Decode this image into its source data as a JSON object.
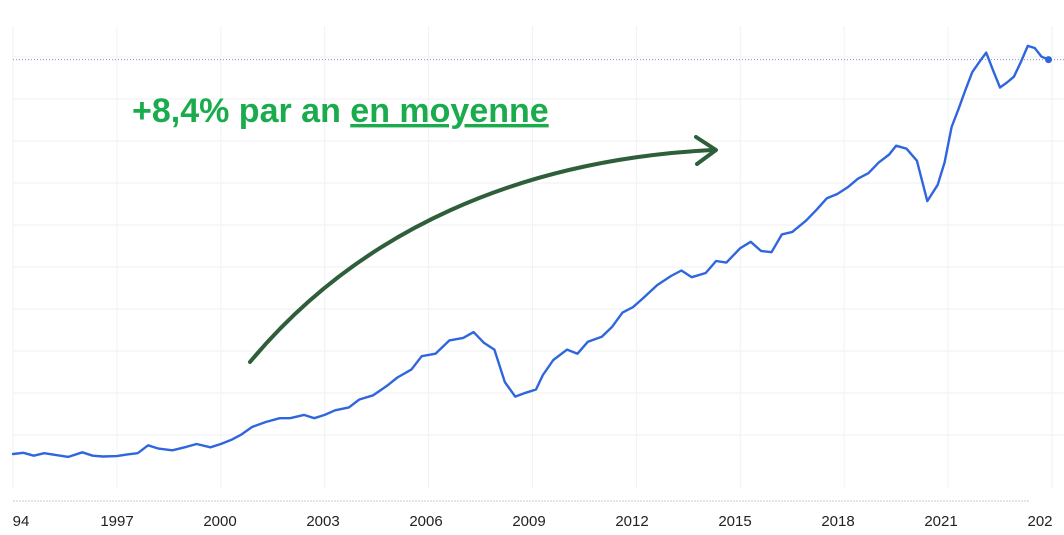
{
  "chart_data": {
    "type": "line",
    "title": "",
    "xlabel": "",
    "ylabel": "",
    "x_tick_labels": [
      "94",
      "1997",
      "2000",
      "2003",
      "2006",
      "2009",
      "2012",
      "2015",
      "2018",
      "2021",
      "202"
    ],
    "xlim": [
      1994.0,
      2024.0
    ],
    "ylim": [
      0,
      100
    ],
    "grid": true,
    "y_tick_labels_visible": false,
    "reference_line": {
      "value": 94.8,
      "style": "dotted",
      "color": "#8a8ac8"
    },
    "series": [
      {
        "color": "#2f66de",
        "x": [
          1994.0,
          1994.3,
          1994.6,
          1994.9,
          1995.2,
          1995.6,
          1996.0,
          1996.3,
          1996.6,
          1997.0,
          1997.3,
          1997.6,
          1997.9,
          1998.2,
          1998.6,
          1999.0,
          1999.3,
          1999.7,
          2000.0,
          2000.3,
          2000.6,
          2000.9,
          2001.3,
          2001.7,
          2002.0,
          2002.4,
          2002.7,
          2003.0,
          2003.3,
          2003.7,
          2004.0,
          2004.4,
          2004.8,
          2005.1,
          2005.5,
          2005.8,
          2006.2,
          2006.6,
          2007.0,
          2007.3,
          2007.6,
          2007.9,
          2008.2,
          2008.5,
          2008.8,
          2009.1,
          2009.3,
          2009.6,
          2010.0,
          2010.3,
          2010.6,
          2011.0,
          2011.3,
          2011.6,
          2011.9,
          2012.2,
          2012.6,
          2013.0,
          2013.3,
          2013.6,
          2014.0,
          2014.3,
          2014.6,
          2015.0,
          2015.3,
          2015.6,
          2015.9,
          2016.2,
          2016.5,
          2016.9,
          2017.2,
          2017.5,
          2017.8,
          2018.1,
          2018.4,
          2018.7,
          2019.0,
          2019.3,
          2019.5,
          2019.8,
          2020.1,
          2020.4,
          2020.7,
          2020.9,
          2021.1,
          2021.3,
          2021.5,
          2021.7,
          2021.9,
          2022.1,
          2022.3,
          2022.5,
          2022.7,
          2022.9,
          2023.1,
          2023.3,
          2023.5,
          2023.7,
          2023.9
        ],
        "y": [
          0.0,
          0.3,
          -0.4,
          0.2,
          -0.2,
          -0.7,
          0.4,
          -0.4,
          -0.6,
          -0.5,
          -0.1,
          0.2,
          2.1,
          1.3,
          0.9,
          1.7,
          2.4,
          1.6,
          2.4,
          3.4,
          4.7,
          6.5,
          7.7,
          8.6,
          8.6,
          9.4,
          8.6,
          9.4,
          10.5,
          11.2,
          13.1,
          14.1,
          16.4,
          18.4,
          20.3,
          23.5,
          24.1,
          27.3,
          27.9,
          29.3,
          26.7,
          25.1,
          17.3,
          13.8,
          14.7,
          15.5,
          19.0,
          22.6,
          25.1,
          24.1,
          27.0,
          28.2,
          30.6,
          34.0,
          35.3,
          37.5,
          40.6,
          42.8,
          44.1,
          42.5,
          43.5,
          46.4,
          46.0,
          49.5,
          51.0,
          48.8,
          48.5,
          52.8,
          53.4,
          56.1,
          58.7,
          61.5,
          62.5,
          64.1,
          66.2,
          67.5,
          70.1,
          72.0,
          74.1,
          73.4,
          70.5,
          60.8,
          64.7,
          70.1,
          78.6,
          82.9,
          87.5,
          91.8,
          94.2,
          96.5,
          92.2,
          88.1,
          89.3,
          90.7,
          94.2,
          98.1,
          97.6,
          95.5,
          94.8
        ]
      }
    ],
    "annotation": {
      "text_prefix": "+8,4% par an ",
      "text_underlined": "en moyenne",
      "color": "#1aab4d",
      "arrow_color": "#2e5e3a"
    }
  }
}
